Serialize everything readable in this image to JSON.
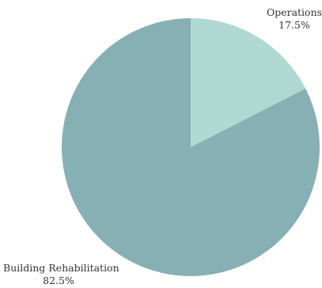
{
  "chart_data": {
    "type": "pie",
    "title": "",
    "slices": [
      {
        "label": "Operations",
        "value": 17.5,
        "value_label": "17.5%",
        "color": "#b0d9d3"
      },
      {
        "label": "Building Rehabilitation",
        "value": 82.5,
        "value_label": "82.5%",
        "color": "#87b0b4"
      }
    ],
    "start_angle_deg": 0,
    "direction": "clockwise",
    "legend": "none"
  }
}
